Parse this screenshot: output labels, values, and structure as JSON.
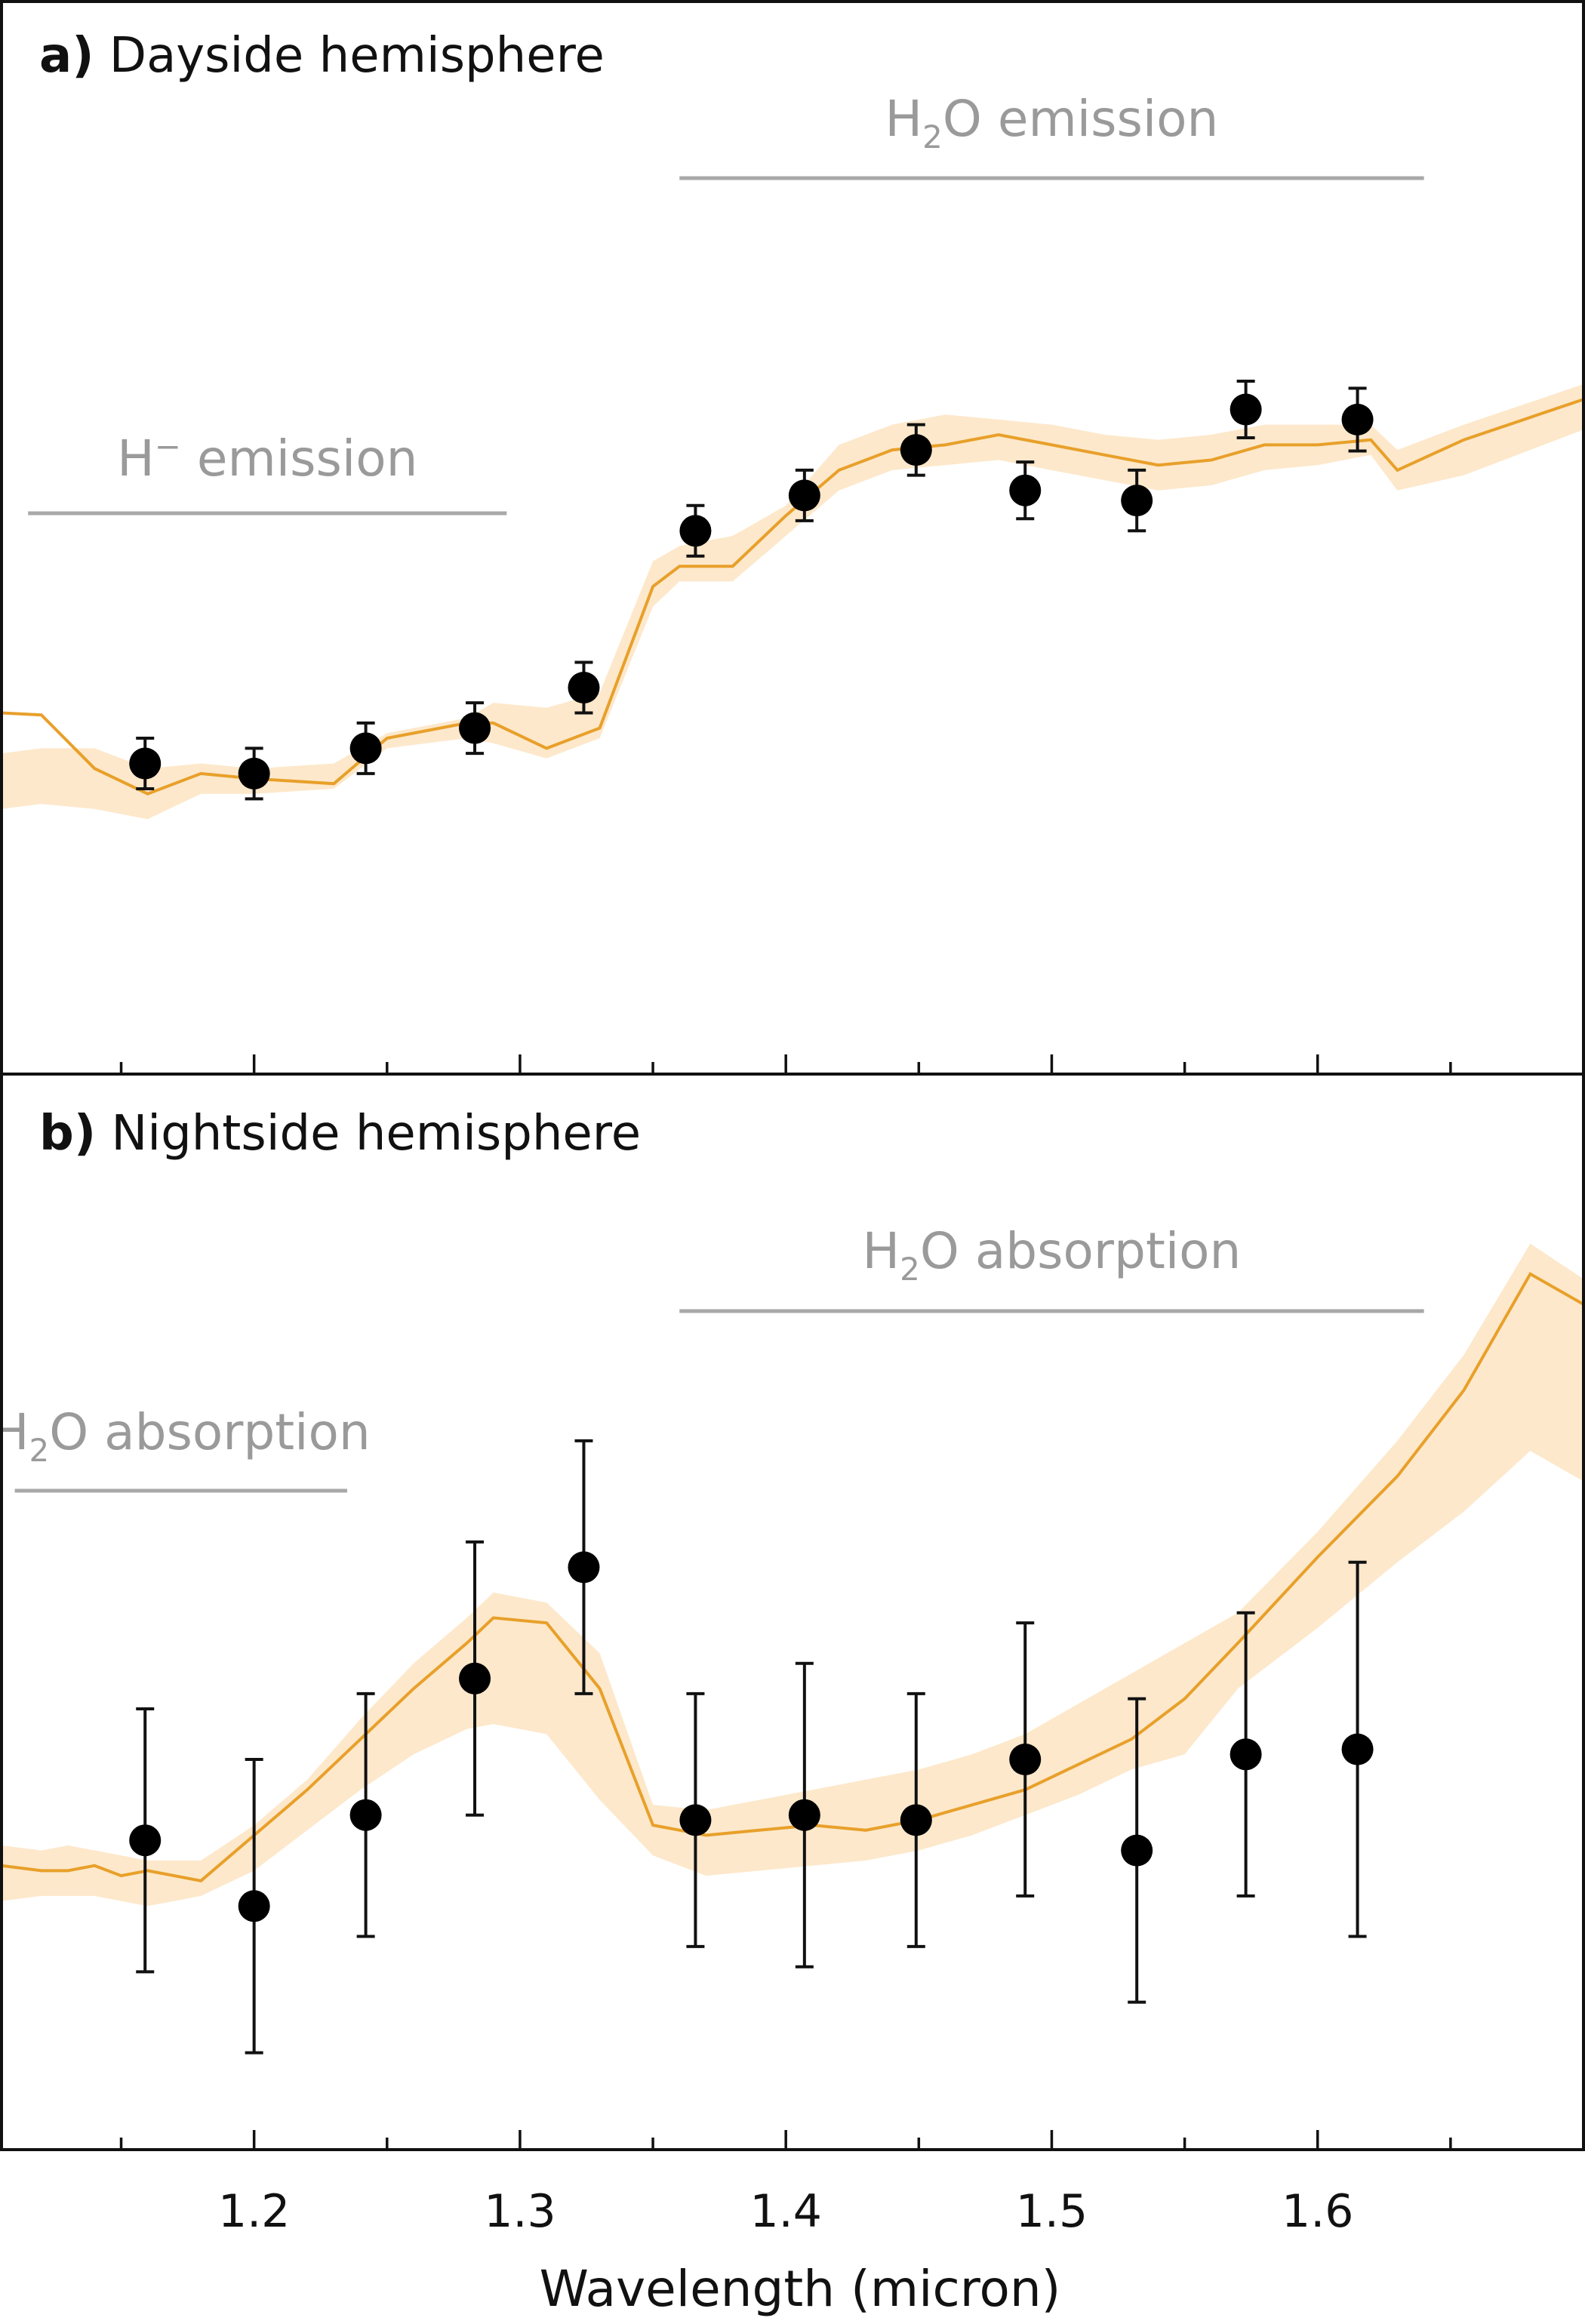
{
  "colors": {
    "model_line": "#e8a02a",
    "model_band": "#fde8cb",
    "points": "#000000",
    "annotation": "#9a9a9a",
    "frame": "#111111"
  },
  "xaxis": {
    "label": "Wavelength (micron)",
    "range": [
      1.105,
      1.7
    ],
    "major_ticks": [
      1.2,
      1.3,
      1.4,
      1.5,
      1.6
    ],
    "minor_ticks": [
      1.15,
      1.2,
      1.25,
      1.3,
      1.35,
      1.4,
      1.45,
      1.5,
      1.55,
      1.6,
      1.65
    ],
    "tick_labels": [
      "1.2",
      "1.3",
      "1.4",
      "1.5",
      "1.6"
    ]
  },
  "chart_data": [
    {
      "type": "scatter",
      "panel_letter": "a)",
      "panel_name": "Dayside hemisphere",
      "xlabel": "",
      "ylabel": "",
      "ylim": [
        0,
        100
      ],
      "yaxis_ticks_labeled": false,
      "annotations": [
        {
          "species": "H",
          "sup": "−",
          "sub": "",
          "rest": " emission",
          "x_range": [
            1.115,
            1.295
          ]
        },
        {
          "species": "H",
          "sup": "",
          "sub": "2",
          "rest": "O emission",
          "x_range": [
            1.36,
            1.64
          ]
        }
      ],
      "points": {
        "x": [
          1.159,
          1.2,
          1.242,
          1.283,
          1.324,
          1.366,
          1.407,
          1.449,
          1.49,
          1.532,
          1.573,
          1.615
        ],
        "y": [
          27.5,
          26.5,
          29.0,
          31.0,
          35.0,
          50.5,
          54.0,
          58.5,
          54.5,
          53.5,
          62.5,
          61.5
        ],
        "yerr": [
          2.5,
          2.5,
          2.5,
          2.5,
          2.5,
          2.5,
          2.5,
          2.5,
          2.8,
          3.0,
          2.8,
          3.1
        ]
      },
      "model": {
        "x": [
          1.105,
          1.12,
          1.14,
          1.16,
          1.18,
          1.2,
          1.23,
          1.25,
          1.28,
          1.29,
          1.31,
          1.33,
          1.35,
          1.36,
          1.38,
          1.4,
          1.42,
          1.44,
          1.46,
          1.48,
          1.5,
          1.52,
          1.54,
          1.56,
          1.58,
          1.6,
          1.62,
          1.63,
          1.655,
          1.7
        ],
        "y": [
          32.5,
          32.3,
          27.0,
          24.5,
          26.5,
          26.0,
          25.5,
          30.0,
          31.5,
          31.5,
          29.0,
          31.0,
          45.0,
          47.0,
          47.0,
          52.0,
          56.5,
          58.5,
          59.0,
          60.0,
          59.0,
          58.0,
          57.0,
          57.5,
          59.0,
          59.0,
          59.5,
          56.5,
          59.5,
          63.5
        ],
        "upper": [
          28.5,
          29.0,
          29.0,
          27.0,
          27.5,
          27.0,
          27.5,
          30.5,
          32.0,
          33.5,
          33.0,
          34.5,
          47.5,
          49.0,
          50.0,
          53.0,
          59.0,
          61.0,
          62.0,
          61.5,
          61.0,
          60.0,
          59.5,
          60.0,
          61.0,
          61.0,
          61.0,
          58.5,
          61.0,
          65.0
        ],
        "lower": [
          23.0,
          23.5,
          23.0,
          22.0,
          24.5,
          24.5,
          25.0,
          29.0,
          30.0,
          29.5,
          28.0,
          30.0,
          43.0,
          45.5,
          45.5,
          50.0,
          54.5,
          56.5,
          57.0,
          57.5,
          56.5,
          55.5,
          54.5,
          55.0,
          56.5,
          57.0,
          58.0,
          54.5,
          56.0,
          60.5
        ]
      }
    },
    {
      "type": "scatter",
      "panel_letter": "b)",
      "panel_name": "Nightside hemisphere",
      "xlabel": "",
      "ylabel": "",
      "ylim": [
        0,
        100
      ],
      "yaxis_ticks_labeled": false,
      "annotations": [
        {
          "species": "H",
          "sup": "",
          "sub": "2",
          "rest": "O absorption",
          "x_range": [
            1.11,
            1.235
          ]
        },
        {
          "species": "H",
          "sup": "",
          "sub": "2",
          "rest": "O absorption",
          "x_range": [
            1.36,
            1.64
          ]
        }
      ],
      "points": {
        "x": [
          1.159,
          1.2,
          1.242,
          1.283,
          1.324,
          1.366,
          1.407,
          1.449,
          1.49,
          1.532,
          1.573,
          1.615
        ],
        "y": [
          27.0,
          20.5,
          29.5,
          43.0,
          54.0,
          29.0,
          29.5,
          29.0,
          35.0,
          26.0,
          35.5,
          36.0
        ],
        "yerr": [
          13.0,
          14.5,
          12.0,
          13.5,
          12.5,
          12.5,
          15.0,
          12.5,
          13.5,
          15.0,
          14.0,
          18.5
        ]
      },
      "model": {
        "x": [
          1.105,
          1.12,
          1.13,
          1.14,
          1.15,
          1.16,
          1.18,
          1.2,
          1.22,
          1.24,
          1.26,
          1.28,
          1.29,
          1.31,
          1.33,
          1.35,
          1.37,
          1.39,
          1.41,
          1.43,
          1.45,
          1.47,
          1.49,
          1.51,
          1.53,
          1.55,
          1.57,
          1.6,
          1.63,
          1.655,
          1.68,
          1.7
        ],
        "y": [
          24.5,
          24.0,
          24.0,
          24.5,
          23.5,
          24.0,
          23.0,
          27.5,
          32.0,
          37.0,
          42.0,
          46.5,
          49.0,
          48.5,
          42.0,
          28.5,
          27.5,
          28.0,
          28.5,
          28.0,
          29.0,
          30.5,
          32.0,
          34.5,
          37.0,
          41.0,
          46.5,
          55.0,
          63.0,
          71.5,
          83.0,
          80.0
        ],
        "upper": [
          26.5,
          26.0,
          26.5,
          26.0,
          25.5,
          25.0,
          25.0,
          28.5,
          33.0,
          39.0,
          44.5,
          49.0,
          51.5,
          50.5,
          45.5,
          30.5,
          30.0,
          31.0,
          32.0,
          33.0,
          34.0,
          35.5,
          37.5,
          40.5,
          43.5,
          46.5,
          49.5,
          57.5,
          66.5,
          75.0,
          86.0,
          82.5
        ],
        "lower": [
          21.0,
          21.5,
          21.5,
          21.5,
          21.0,
          20.5,
          21.5,
          24.0,
          28.0,
          32.0,
          35.5,
          38.0,
          38.5,
          37.5,
          31.0,
          25.5,
          23.5,
          24.0,
          24.5,
          25.0,
          26.0,
          27.5,
          29.5,
          31.5,
          34.0,
          35.5,
          42.0,
          48.0,
          54.5,
          59.5,
          65.5,
          62.5
        ]
      }
    }
  ]
}
